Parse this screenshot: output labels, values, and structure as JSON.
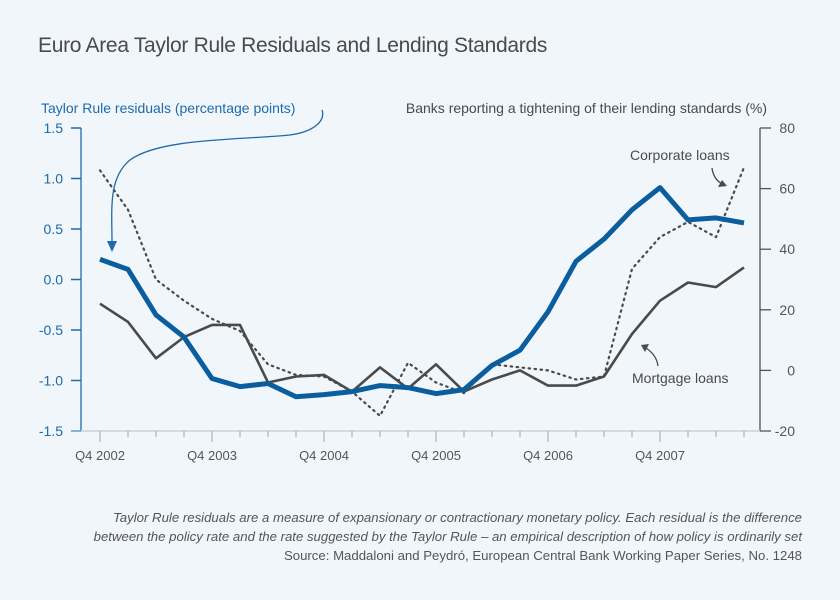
{
  "chart_data": {
    "type": "line",
    "title": "Euro Area Taylor Rule Residuals and Lending Standards",
    "left_axis": {
      "label": "Taylor Rule residuals (percentage points)",
      "ylim": [
        -1.5,
        1.5
      ],
      "ticks": [
        "1.5",
        "1.0",
        "0.5",
        "0.0",
        "-0.5",
        "-1.0",
        "-1.5"
      ],
      "tick_values": [
        1.5,
        1.0,
        0.5,
        0.0,
        -0.5,
        -1.0,
        -1.5
      ]
    },
    "right_axis": {
      "label": "Banks reporting a tightening of their lending standards (%)",
      "ylim": [
        -20,
        80
      ],
      "ticks": [
        "80",
        "60",
        "40",
        "20",
        "0",
        "-20"
      ],
      "tick_values": [
        80,
        60,
        40,
        20,
        0,
        -20
      ]
    },
    "x_tick_labels": [
      "Q4 2002",
      "Q4 2003",
      "Q4 2004",
      "Q4 2005",
      "Q4 2006",
      "Q4 2007"
    ],
    "x_label_indices": [
      0,
      4,
      8,
      12,
      16,
      20
    ],
    "x": [
      "Q4 2002",
      "Q1 2003",
      "Q2 2003",
      "Q3 2003",
      "Q4 2003",
      "Q1 2004",
      "Q2 2004",
      "Q3 2004",
      "Q4 2004",
      "Q1 2005",
      "Q2 2005",
      "Q3 2005",
      "Q4 2005",
      "Q1 2006",
      "Q2 2006",
      "Q3 2006",
      "Q4 2006",
      "Q1 2007",
      "Q2 2007",
      "Q3 2007",
      "Q4 2007",
      "Q1 2008",
      "Q2 2008",
      "Q3 2008"
    ],
    "series": [
      {
        "name": "Taylor Rule residuals",
        "axis": "left",
        "style": "thick-solid",
        "color": "#0b5e9e",
        "values": [
          0.2,
          0.1,
          -0.35,
          -0.57,
          -0.98,
          -1.06,
          -1.03,
          -1.16,
          -1.14,
          -1.11,
          -1.05,
          -1.07,
          -1.13,
          -1.09,
          -0.85,
          -0.7,
          -0.32,
          0.18,
          0.4,
          0.69,
          0.91,
          0.59,
          0.61,
          0.56
        ]
      },
      {
        "name": "Corporate loans",
        "axis": "right",
        "style": "dotted",
        "color": "#4a4a4a",
        "values": [
          66,
          53,
          30,
          23,
          17,
          13,
          2,
          -1.5,
          -2,
          -7,
          -15,
          2.5,
          -4,
          -7.5,
          2,
          1,
          0,
          -3,
          -2,
          33.5,
          44,
          49,
          44,
          67
        ]
      },
      {
        "name": "Mortgage loans",
        "axis": "right",
        "style": "solid",
        "color": "#4a4a4a",
        "values": [
          22,
          16,
          4,
          11,
          15,
          15,
          -4,
          -2,
          -1.5,
          -7,
          1,
          -6,
          2,
          -7,
          -3,
          0,
          -5,
          -5,
          -2,
          12,
          23,
          29,
          27.5,
          34
        ]
      }
    ],
    "annotations": {
      "corporate": "Corporate loans",
      "mortgage": "Mortgage loans"
    },
    "grid": false,
    "legend": "inline-annotations"
  },
  "footnote": {
    "note_line1": "Taylor Rule residuals are a measure of expansionary or contractionary monetary policy. Each residual is the difference",
    "note_line2": "between the policy rate and the rate suggested by the Taylor Rule – an empirical description of how policy is ordinarily set",
    "source": "Source: Maddaloni and Peydró, European Central Bank Working Paper Series, No. 1248"
  }
}
